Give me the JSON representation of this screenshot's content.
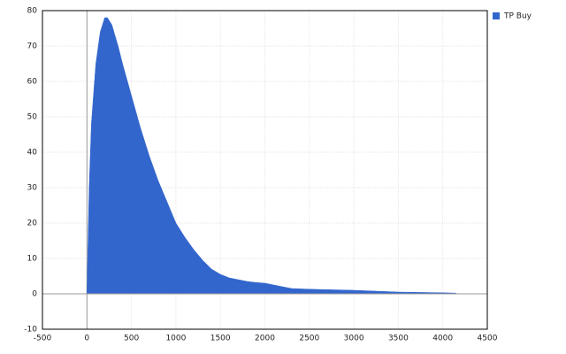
{
  "chart_data": {
    "type": "area",
    "color": "#3366cc",
    "grid": true,
    "legend": "top-right",
    "xlim": [
      -500,
      4500
    ],
    "xticks": [
      -500,
      0,
      500,
      1000,
      1500,
      2000,
      2500,
      3000,
      3500,
      4000,
      4500
    ],
    "ylim": [
      -10,
      80
    ],
    "yticks": [
      -10,
      0,
      10,
      20,
      30,
      40,
      50,
      60,
      70,
      80
    ],
    "series": [
      {
        "name": "TP Buy",
        "color": "#3366cc",
        "x": [
          0,
          25,
          50,
          100,
          150,
          200,
          230,
          280,
          350,
          400,
          500,
          600,
          700,
          800,
          900,
          1000,
          1100,
          1200,
          1300,
          1400,
          1500,
          1600,
          1700,
          1800,
          1900,
          2000,
          2100,
          2200,
          2300,
          2500,
          3000,
          3500,
          4000,
          4150
        ],
        "values": [
          0,
          30,
          48,
          65,
          74,
          78,
          78,
          76,
          70,
          65,
          56,
          47,
          39,
          32,
          26,
          20,
          16,
          12.5,
          9.5,
          7,
          5.5,
          4.5,
          4,
          3.5,
          3.2,
          3,
          2.5,
          2,
          1.5,
          1.3,
          1,
          0.5,
          0.3,
          0.2
        ]
      }
    ]
  }
}
